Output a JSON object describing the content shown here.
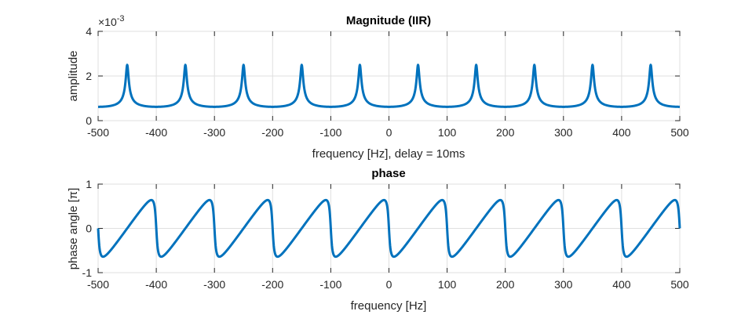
{
  "chart_data": [
    {
      "type": "line",
      "title": "Magnitude (IIR)",
      "xlabel": "frequency [Hz], delay = 10ms",
      "ylabel": "amplitude",
      "exponent_label": "×10",
      "exponent_power": "-3",
      "xlim": [
        -500,
        500
      ],
      "ylim": [
        0,
        4
      ],
      "xticks": [
        "-500",
        "-400",
        "-300",
        "-200",
        "-100",
        "0",
        "100",
        "200",
        "300",
        "400",
        "500"
      ],
      "yticks": [
        "0",
        "2",
        "4"
      ],
      "grid": true,
      "series": [
        {
          "color": "#0072BD",
          "peak_frequencies": [
            -450,
            -350,
            -250,
            -150,
            -50,
            50,
            150,
            250,
            350,
            450
          ],
          "peak_value": 2.5,
          "trough_frequencies": [
            -500,
            -400,
            -300,
            -200,
            -100,
            0,
            100,
            200,
            300,
            400,
            500
          ],
          "trough_value": 0.62
        }
      ]
    },
    {
      "type": "line",
      "title": "phase",
      "xlabel": "frequency [Hz]",
      "ylabel": "phase angle [π]",
      "xlim": [
        -500,
        500
      ],
      "ylim": [
        -1,
        1
      ],
      "xticks": [
        "-500",
        "-400",
        "-300",
        "-200",
        "-100",
        "0",
        "100",
        "200",
        "300",
        "400",
        "500"
      ],
      "yticks": [
        "-1",
        "0",
        "1"
      ],
      "grid": true,
      "series": [
        {
          "color": "#0072BD",
          "period_hz": 100,
          "max_value": 0.64,
          "min_value": -0.64,
          "max_frequencies": [
            -465,
            -365,
            -265,
            -165,
            -65,
            35,
            135,
            235,
            335,
            435
          ],
          "min_frequencies": [
            -435,
            -335,
            -235,
            -135,
            -35,
            65,
            165,
            265,
            365,
            465
          ],
          "zero_crossings": [
            -500,
            -400,
            -300,
            -200,
            -100,
            0,
            100,
            200,
            300,
            400,
            500
          ]
        }
      ]
    }
  ]
}
